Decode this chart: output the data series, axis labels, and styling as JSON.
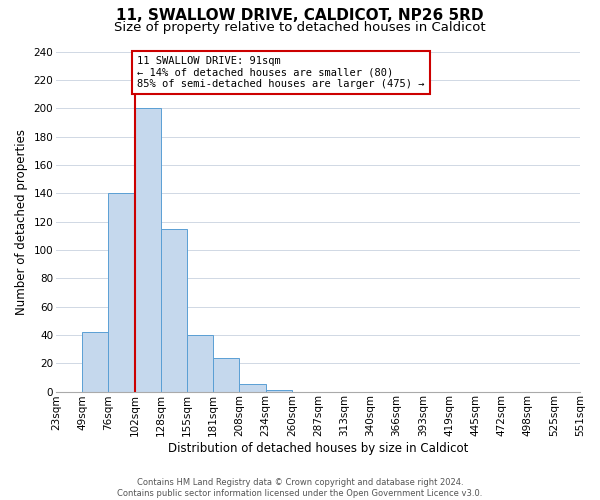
{
  "title": "11, SWALLOW DRIVE, CALDICOT, NP26 5RD",
  "subtitle": "Size of property relative to detached houses in Caldicot",
  "bar_values": [
    0,
    42,
    140,
    200,
    115,
    40,
    24,
    5,
    1,
    0,
    0,
    0,
    0,
    0,
    0,
    0,
    0,
    0,
    0,
    0
  ],
  "bin_labels": [
    "23sqm",
    "49sqm",
    "76sqm",
    "102sqm",
    "128sqm",
    "155sqm",
    "181sqm",
    "208sqm",
    "234sqm",
    "260sqm",
    "287sqm",
    "313sqm",
    "340sqm",
    "366sqm",
    "393sqm",
    "419sqm",
    "445sqm",
    "472sqm",
    "498sqm",
    "525sqm",
    "551sqm"
  ],
  "bar_color": "#c5d8ed",
  "bar_edge_color": "#5a9fd4",
  "ylabel": "Number of detached properties",
  "xlabel": "Distribution of detached houses by size in Caldicot",
  "ylim": [
    0,
    240
  ],
  "yticks": [
    0,
    20,
    40,
    60,
    80,
    100,
    120,
    140,
    160,
    180,
    200,
    220,
    240
  ],
  "property_bin_index": 3,
  "vline_color": "#cc0000",
  "annotation_text": "11 SWALLOW DRIVE: 91sqm\n← 14% of detached houses are smaller (80)\n85% of semi-detached houses are larger (475) →",
  "annotation_box_edge_color": "#cc0000",
  "footer_text": "Contains HM Land Registry data © Crown copyright and database right 2024.\nContains public sector information licensed under the Open Government Licence v3.0.",
  "background_color": "#ffffff",
  "grid_color": "#d0d8e4",
  "title_fontsize": 11,
  "subtitle_fontsize": 9.5,
  "label_fontsize": 8.5,
  "tick_fontsize": 7.5,
  "footer_fontsize": 6.0
}
